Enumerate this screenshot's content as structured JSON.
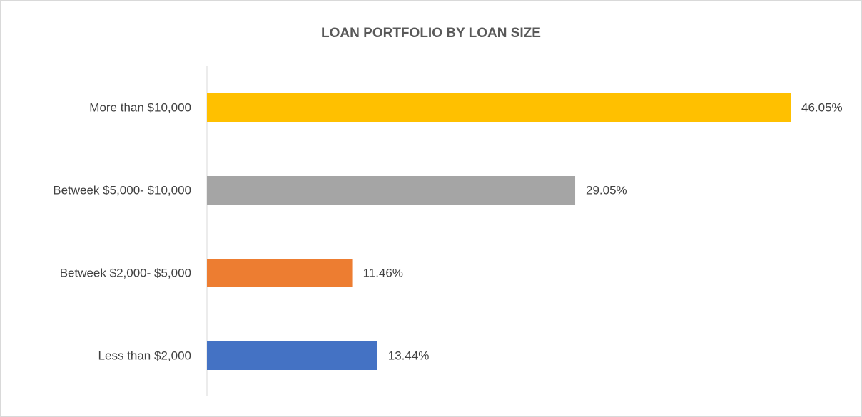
{
  "chart_data": {
    "type": "bar",
    "orientation": "horizontal",
    "title": "LOAN PORTFOLIO BY LOAN SIZE",
    "categories": [
      "More than $10,000",
      "Betweek $5,000- $10,000",
      "Betweek $2,000- $5,000",
      "Less than $2,000"
    ],
    "values": [
      46.05,
      29.05,
      11.46,
      13.44
    ],
    "value_labels": [
      "46.05%",
      "29.05%",
      "11.46%",
      "13.44%"
    ],
    "colors": [
      "#ffc000",
      "#a5a5a5",
      "#ed7d31",
      "#4472c4"
    ]
  }
}
